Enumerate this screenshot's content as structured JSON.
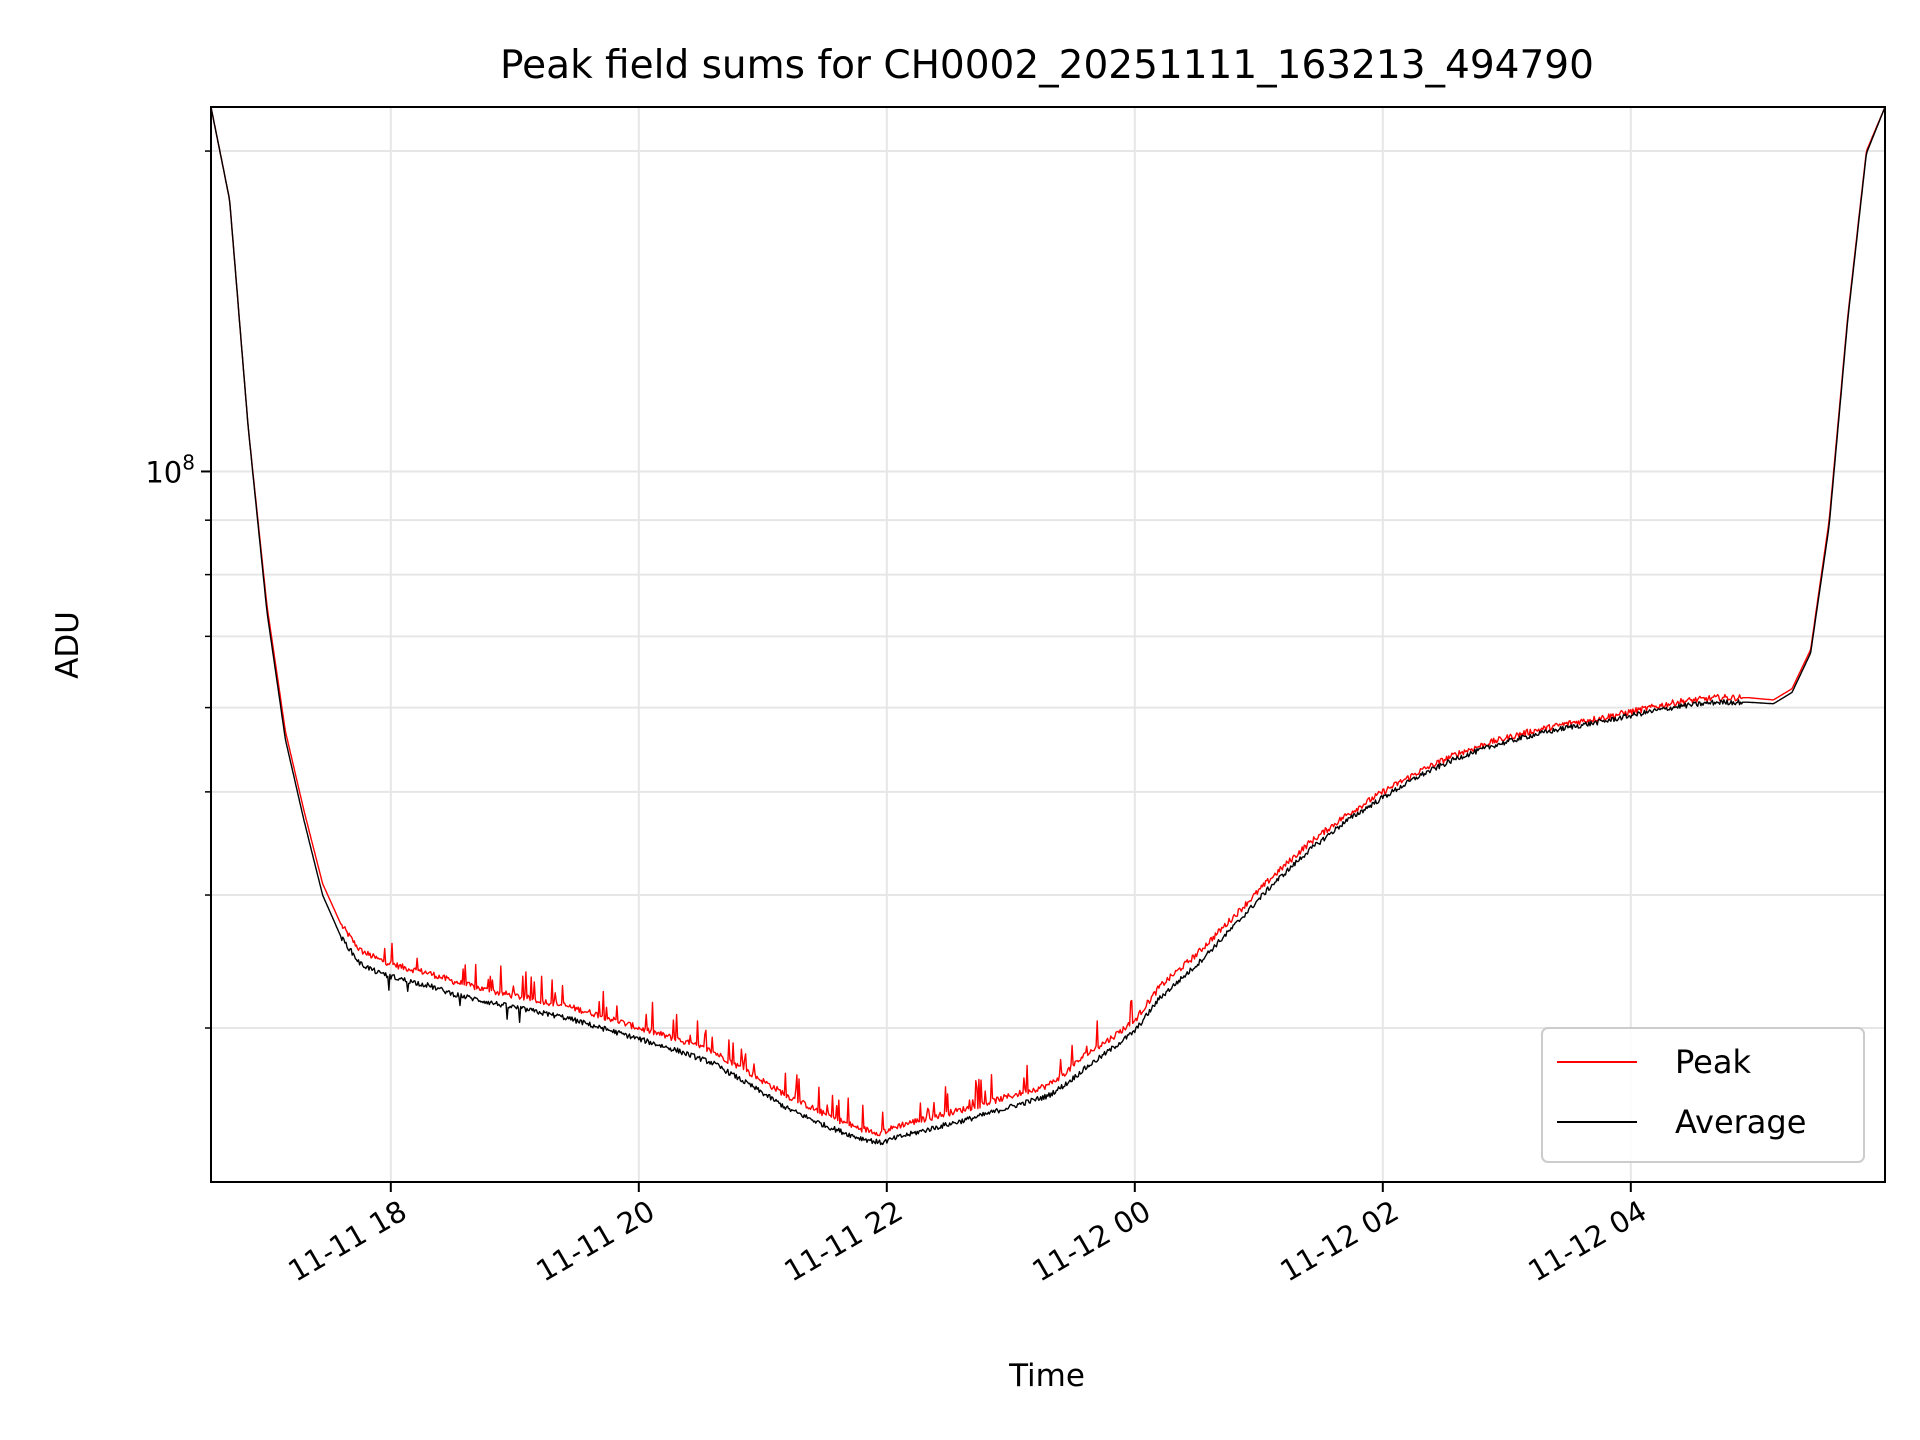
{
  "chart_data": {
    "type": "line",
    "title": "Peak field sums for CH0002_20251111_163213_494790",
    "xlabel": "Time",
    "ylabel": "ADU",
    "yscale": "log",
    "xlim_hours": [
      16.55,
      6.05
    ],
    "ylim": [
      21500000,
      220000000
    ],
    "grid": true,
    "legend_position": "lower right",
    "x_ticks": [
      {
        "label": "11-11 18",
        "hour": 18
      },
      {
        "label": "11-11 20",
        "hour": 20
      },
      {
        "label": "11-11 22",
        "hour": 22
      },
      {
        "label": "11-12 00",
        "hour": 24
      },
      {
        "label": "11-12 02",
        "hour": 26
      },
      {
        "label": "11-12 04",
        "hour": 28
      }
    ],
    "y_major_tick": {
      "base": "10",
      "exponent": "8",
      "value": 100000000
    },
    "y_minor_ticks": [
      30000000,
      40000000,
      50000000,
      60000000,
      70000000,
      80000000,
      90000000,
      200000000
    ],
    "series": [
      {
        "name": "Peak",
        "color": "#ff0000",
        "hours": [
          16.55,
          16.7,
          16.85,
          17.0,
          17.15,
          17.3,
          17.45,
          17.6,
          17.75,
          17.9,
          18.1,
          18.3,
          18.5,
          18.8,
          19.1,
          19.4,
          19.7,
          20.0,
          20.3,
          20.6,
          20.9,
          21.2,
          21.5,
          21.75,
          21.95,
          22.1,
          22.4,
          22.7,
          23.0,
          23.3,
          23.45,
          23.6,
          23.8,
          24.0,
          24.2,
          24.5,
          24.8,
          25.1,
          25.4,
          25.7,
          26.0,
          26.3,
          26.6,
          26.9,
          27.2,
          27.5,
          27.8,
          28.1,
          28.4,
          28.7,
          28.95,
          29.15,
          29.3,
          29.45,
          29.6,
          29.75,
          29.9,
          30.05
        ],
        "values": [
          220000000,
          180000000,
          110000000,
          75000000,
          57000000,
          48000000,
          41000000,
          37500000,
          35500000,
          34800000,
          34200000,
          33800000,
          33200000,
          32500000,
          32000000,
          31500000,
          30800000,
          30000000,
          29300000,
          28500000,
          27200000,
          25900000,
          24900000,
          24200000,
          23900000,
          24300000,
          24800000,
          25300000,
          25900000,
          26500000,
          27300000,
          28300000,
          29300000,
          30500000,
          32800000,
          35200000,
          38200000,
          41500000,
          44700000,
          47500000,
          50000000,
          52300000,
          54300000,
          55800000,
          57000000,
          58000000,
          58800000,
          59800000,
          60800000,
          61300000,
          61300000,
          61000000,
          62500000,
          68000000,
          90000000,
          140000000,
          200000000,
          220000000
        ]
      },
      {
        "name": "Average",
        "color": "#000000",
        "hours": [
          16.55,
          16.7,
          16.85,
          17.0,
          17.15,
          17.3,
          17.45,
          17.6,
          17.75,
          17.9,
          18.1,
          18.3,
          18.5,
          18.8,
          19.1,
          19.4,
          19.7,
          20.0,
          20.3,
          20.6,
          20.9,
          21.2,
          21.5,
          21.75,
          21.95,
          22.1,
          22.4,
          22.7,
          23.0,
          23.3,
          23.45,
          23.6,
          23.8,
          24.0,
          24.2,
          24.5,
          24.8,
          25.1,
          25.4,
          25.7,
          26.0,
          26.3,
          26.6,
          26.9,
          27.2,
          27.5,
          27.8,
          28.1,
          28.4,
          28.7,
          28.95,
          29.15,
          29.3,
          29.45,
          29.6,
          29.75,
          29.9,
          30.05
        ],
        "values": [
          220000000,
          180000000,
          110000000,
          74000000,
          56000000,
          47000000,
          40000000,
          36500000,
          34500000,
          33800000,
          33300000,
          32900000,
          32300000,
          31700000,
          31200000,
          30700000,
          30000000,
          29300000,
          28600000,
          27800000,
          26500000,
          25200000,
          24300000,
          23700000,
          23400000,
          23700000,
          24200000,
          24700000,
          25300000,
          25900000,
          26600000,
          27500000,
          28600000,
          29800000,
          32000000,
          34400000,
          37400000,
          40800000,
          44000000,
          46900000,
          49400000,
          51800000,
          53800000,
          55300000,
          56500000,
          57500000,
          58300000,
          59300000,
          60200000,
          60700000,
          60700000,
          60500000,
          62000000,
          67500000,
          89000000,
          139000000,
          199000000,
          220000000
        ]
      }
    ]
  }
}
